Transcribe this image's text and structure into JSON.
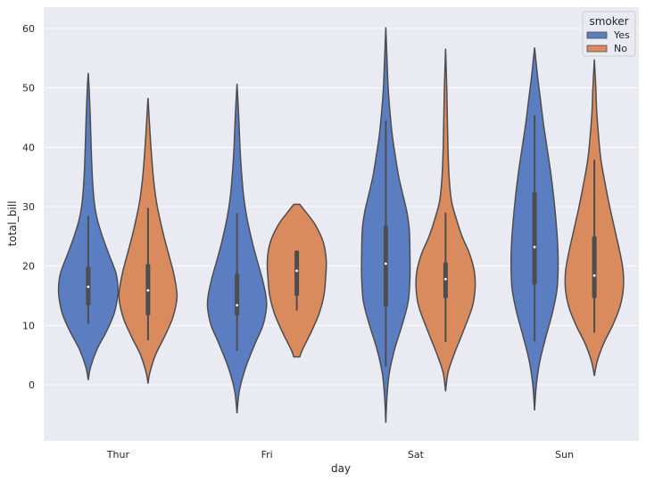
{
  "chart_data": {
    "type": "violin",
    "title": "",
    "xlabel": "day",
    "ylabel": "total_bill",
    "ylim": [
      -9.5,
      63.5
    ],
    "yticks": [
      0,
      10,
      20,
      30,
      40,
      50,
      60
    ],
    "categories": [
      "Thur",
      "Fri",
      "Sat",
      "Sun"
    ],
    "grid": true,
    "legend": {
      "title": "smoker",
      "placement": "top-right"
    },
    "colors": {
      "Yes": "#5a7ec1",
      "No": "#d98b5e",
      "background": "#eaeaf2",
      "grid": "#ffffff",
      "edge": "#4d4d4d"
    },
    "series": [
      {
        "name": "Yes",
        "violins": [
          {
            "category": "Thur",
            "min": 0.8,
            "max": 52.5,
            "q1": 13.4,
            "median": 16.5,
            "q3": 19.9,
            "whisker_low": 10.3,
            "whisker_high": 28.4,
            "profile": [
              [
                0.8,
                0
              ],
              [
                3,
                0.08
              ],
              [
                6,
                0.3
              ],
              [
                9,
                0.62
              ],
              [
                12,
                0.88
              ],
              [
                15,
                1.0
              ],
              [
                17,
                1.0
              ],
              [
                19,
                0.93
              ],
              [
                22,
                0.7
              ],
              [
                25,
                0.48
              ],
              [
                28,
                0.3
              ],
              [
                31,
                0.2
              ],
              [
                35,
                0.14
              ],
              [
                40,
                0.1
              ],
              [
                45,
                0.07
              ],
              [
                50,
                0.03
              ],
              [
                52.5,
                0
              ]
            ]
          },
          {
            "category": "Fri",
            "min": -4.8,
            "max": 50.7,
            "q1": 11.7,
            "median": 13.4,
            "q3": 18.7,
            "whisker_low": 5.7,
            "whisker_high": 28.9,
            "profile": [
              [
                -4.8,
                0
              ],
              [
                -1,
                0.08
              ],
              [
                3,
                0.3
              ],
              [
                7,
                0.62
              ],
              [
                10,
                0.88
              ],
              [
                13,
                1.0
              ],
              [
                15,
                0.98
              ],
              [
                18,
                0.85
              ],
              [
                21,
                0.68
              ],
              [
                24,
                0.52
              ],
              [
                28,
                0.34
              ],
              [
                32,
                0.22
              ],
              [
                36,
                0.15
              ],
              [
                40,
                0.1
              ],
              [
                45,
                0.06
              ],
              [
                50.7,
                0
              ]
            ]
          },
          {
            "category": "Sat",
            "min": -6.4,
            "max": 60.2,
            "q1": 13.2,
            "median": 20.4,
            "q3": 26.8,
            "whisker_low": 3.1,
            "whisker_high": 44.5,
            "profile": [
              [
                -6.4,
                0
              ],
              [
                -2,
                0.04
              ],
              [
                2,
                0.12
              ],
              [
                6,
                0.3
              ],
              [
                10,
                0.55
              ],
              [
                14,
                0.76
              ],
              [
                18,
                0.82
              ],
              [
                22,
                0.82
              ],
              [
                26,
                0.8
              ],
              [
                29,
                0.72
              ],
              [
                32,
                0.58
              ],
              [
                35,
                0.44
              ],
              [
                38,
                0.34
              ],
              [
                42,
                0.22
              ],
              [
                46,
                0.14
              ],
              [
                50,
                0.08
              ],
              [
                55,
                0.04
              ],
              [
                60.2,
                0
              ]
            ]
          },
          {
            "category": "Sun",
            "min": -4.3,
            "max": 56.8,
            "q1": 16.9,
            "median": 23.2,
            "q3": 32.4,
            "whisker_low": 7.3,
            "whisker_high": 45.4,
            "profile": [
              [
                -4.3,
                0
              ],
              [
                0,
                0.06
              ],
              [
                4,
                0.18
              ],
              [
                8,
                0.38
              ],
              [
                12,
                0.6
              ],
              [
                16,
                0.76
              ],
              [
                20,
                0.8
              ],
              [
                24,
                0.78
              ],
              [
                28,
                0.72
              ],
              [
                32,
                0.64
              ],
              [
                36,
                0.54
              ],
              [
                40,
                0.42
              ],
              [
                44,
                0.3
              ],
              [
                48,
                0.2
              ],
              [
                52,
                0.1
              ],
              [
                56.8,
                0
              ]
            ]
          }
        ]
      },
      {
        "name": "No",
        "violins": [
          {
            "category": "Thur",
            "min": 0.2,
            "max": 48.3,
            "q1": 11.7,
            "median": 15.9,
            "q3": 20.3,
            "whisker_low": 7.5,
            "whisker_high": 29.8,
            "profile": [
              [
                0.2,
                0
              ],
              [
                2,
                0.06
              ],
              [
                5,
                0.25
              ],
              [
                8,
                0.55
              ],
              [
                11,
                0.82
              ],
              [
                14,
                0.97
              ],
              [
                16,
                0.97
              ],
              [
                19,
                0.86
              ],
              [
                22,
                0.7
              ],
              [
                25,
                0.54
              ],
              [
                28,
                0.4
              ],
              [
                31,
                0.28
              ],
              [
                35,
                0.18
              ],
              [
                40,
                0.1
              ],
              [
                44,
                0.05
              ],
              [
                48.3,
                0
              ]
            ]
          },
          {
            "category": "Fri",
            "min": 4.7,
            "max": 30.4,
            "q1": 15.0,
            "median": 19.2,
            "q3": 22.6,
            "whisker_low": 12.5,
            "whisker_high": 22.6,
            "profile": [
              [
                4.7,
                0.1
              ],
              [
                6,
                0.2
              ],
              [
                9,
                0.5
              ],
              [
                12,
                0.76
              ],
              [
                15,
                0.92
              ],
              [
                18,
                0.98
              ],
              [
                21,
                1.0
              ],
              [
                24,
                0.9
              ],
              [
                27,
                0.62
              ],
              [
                29,
                0.32
              ],
              [
                30.4,
                0.1
              ]
            ]
          },
          {
            "category": "Sat",
            "min": -1.1,
            "max": 56.6,
            "q1": 14.6,
            "median": 17.8,
            "q3": 20.6,
            "whisker_low": 7.2,
            "whisker_high": 29.0,
            "profile": [
              [
                -1.1,
                0
              ],
              [
                2,
                0.08
              ],
              [
                5,
                0.28
              ],
              [
                9,
                0.6
              ],
              [
                13,
                0.9
              ],
              [
                16,
                1.0
              ],
              [
                19,
                0.98
              ],
              [
                22,
                0.82
              ],
              [
                25,
                0.56
              ],
              [
                28,
                0.36
              ],
              [
                31,
                0.2
              ],
              [
                35,
                0.12
              ],
              [
                40,
                0.08
              ],
              [
                45,
                0.06
              ],
              [
                50,
                0.04
              ],
              [
                56.6,
                0
              ]
            ]
          },
          {
            "category": "Sun",
            "min": 1.5,
            "max": 54.8,
            "q1": 14.6,
            "median": 18.4,
            "q3": 25.0,
            "whisker_low": 8.8,
            "whisker_high": 37.9,
            "profile": [
              [
                1.5,
                0
              ],
              [
                4,
                0.1
              ],
              [
                7,
                0.32
              ],
              [
                10,
                0.62
              ],
              [
                13,
                0.86
              ],
              [
                16,
                0.98
              ],
              [
                19,
                0.98
              ],
              [
                22,
                0.88
              ],
              [
                26,
                0.7
              ],
              [
                30,
                0.52
              ],
              [
                34,
                0.36
              ],
              [
                38,
                0.22
              ],
              [
                42,
                0.14
              ],
              [
                46,
                0.08
              ],
              [
                50,
                0.05
              ],
              [
                54.8,
                0
              ]
            ]
          }
        ]
      }
    ]
  }
}
